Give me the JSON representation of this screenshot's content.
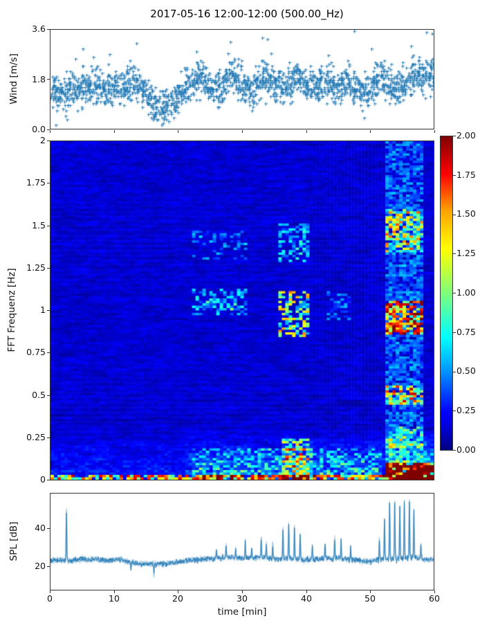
{
  "figure": {
    "title": "2017-05-16 12:00-12:00 (500.00_Hz)"
  },
  "colors": {
    "accent": "#1f77b4",
    "spine": "#333333",
    "background": "#ffffff"
  },
  "wind_plot": {
    "ylabel": "Wind [m/s]",
    "yticks": [
      "3.6",
      "1.8",
      "0.0"
    ]
  },
  "spec_plot": {
    "ylabel": "FFT Frequenz [Hz]",
    "yticks": [
      "2",
      "1.75",
      "1.5",
      "1.25",
      "1",
      "0.75",
      "0.5",
      "0.25",
      "0"
    ]
  },
  "colorbar": {
    "ticks": [
      "2.00",
      "1.75",
      "1.50",
      "1.25",
      "1.00",
      "0.75",
      "0.50",
      "0.25",
      "0.00"
    ]
  },
  "spl_plot": {
    "ylabel": "SPL [dB]",
    "yticks": [
      "40",
      "20"
    ],
    "xticks": [
      "0",
      "10",
      "20",
      "30",
      "40",
      "50",
      "60"
    ],
    "xlabel": "time [min]"
  },
  "chart_data": [
    {
      "type": "scatter",
      "name": "wind-speed",
      "ylabel": "Wind [m/s]",
      "xlim": [
        0,
        60
      ],
      "ylim": [
        0,
        3.6
      ],
      "yticks": [
        0.0,
        1.8,
        3.6
      ],
      "marker": "+",
      "color": "#1f77b4",
      "points_per_minute": 34,
      "spread": 0.3,
      "minute_means": [
        1.35,
        1.2,
        1.3,
        1.45,
        1.4,
        1.5,
        1.55,
        1.5,
        1.4,
        1.5,
        1.65,
        1.55,
        1.5,
        1.75,
        1.5,
        1.15,
        0.85,
        0.75,
        0.9,
        1.05,
        1.3,
        1.6,
        1.8,
        1.85,
        1.7,
        1.45,
        1.5,
        1.75,
        1.95,
        1.75,
        1.5,
        1.3,
        1.6,
        1.95,
        1.8,
        1.6,
        1.5,
        1.65,
        1.85,
        1.6,
        1.5,
        1.6,
        1.75,
        1.7,
        1.5,
        1.6,
        1.7,
        1.5,
        1.4,
        1.35,
        1.55,
        1.75,
        1.7,
        1.5,
        1.45,
        1.6,
        1.85,
        2.0,
        1.8,
        1.95
      ],
      "outliers": [
        [
          5.1,
          2.9
        ],
        [
          9.3,
          2.7
        ],
        [
          13.5,
          3.1
        ],
        [
          22.9,
          2.8
        ],
        [
          28.2,
          3.15
        ],
        [
          33.2,
          3.3
        ],
        [
          34.0,
          3.25
        ],
        [
          47.6,
          3.55
        ],
        [
          50.3,
          2.9
        ],
        [
          56.5,
          3.0
        ],
        [
          58.9,
          3.5
        ],
        [
          59.8,
          3.45
        ]
      ]
    },
    {
      "type": "heatmap",
      "name": "fft-spectrogram",
      "ylabel": "FFT Frequenz [Hz]",
      "xlim": [
        0,
        60
      ],
      "ylim": [
        0,
        2
      ],
      "colormap": "jet",
      "clim": [
        0.0,
        2.0
      ],
      "grid": {
        "time_bins": 111,
        "freq_bins": 140
      },
      "base": {
        "level": 0.04,
        "noise": 0.12,
        "persistence": 0.55
      },
      "low_freq_ramp": {
        "f_max": 0.3,
        "strength": 0.5
      },
      "time_boosts": [
        {
          "t": [
            0,
            21
          ],
          "k": 0.35
        },
        {
          "t": [
            21,
            36
          ],
          "k": 0.7
        },
        {
          "t": [
            36,
            41
          ],
          "k": 1.0
        },
        {
          "t": [
            41,
            52.5
          ],
          "k": 0.7
        },
        {
          "t": [
            52.5,
            60
          ],
          "k": 1.8
        }
      ],
      "events": [
        {
          "t": [
            22,
            31
          ],
          "f": [
            0.97,
            1.13
          ],
          "amp": 0.5,
          "p": 0.45
        },
        {
          "t": [
            22,
            31
          ],
          "f": [
            1.3,
            1.47
          ],
          "amp": 0.38,
          "p": 0.35
        },
        {
          "t": [
            24,
            30
          ],
          "f": [
            1.0,
            1.06
          ],
          "amp": 0.35,
          "p": 0.5
        },
        {
          "t": [
            35.5,
            40.5
          ],
          "f": [
            0.85,
            1.12
          ],
          "amp": 1.0,
          "p": 0.55
        },
        {
          "t": [
            35.5,
            40.5
          ],
          "f": [
            1.28,
            1.52
          ],
          "amp": 0.55,
          "p": 0.45
        },
        {
          "t": [
            43.5,
            47
          ],
          "f": [
            0.95,
            1.12
          ],
          "amp": 0.35,
          "p": 0.35
        },
        {
          "t": [
            52.5,
            58.5
          ],
          "f": [
            0,
            2
          ],
          "amp": 0.35,
          "p": 0.75
        },
        {
          "t": [
            52.5,
            58.5
          ],
          "f": [
            0.86,
            1.06
          ],
          "amp": 1.35,
          "p": 0.8
        },
        {
          "t": [
            52.5,
            58.5
          ],
          "f": [
            1.35,
            1.6
          ],
          "amp": 0.85,
          "p": 0.7
        },
        {
          "t": [
            52.5,
            58.5
          ],
          "f": [
            0.44,
            0.56
          ],
          "amp": 1.05,
          "p": 0.7
        },
        {
          "t": [
            52.5,
            58.5
          ],
          "f": [
            0.18,
            0.32
          ],
          "amp": 0.5,
          "p": 0.5
        },
        {
          "t": [
            52.5,
            60
          ],
          "f": [
            0,
            0.1
          ],
          "amp": 1.7,
          "p": 0.9
        },
        {
          "t": [
            36,
            40.5
          ],
          "f": [
            0,
            0.25
          ],
          "amp": 0.8,
          "p": 0.6
        },
        {
          "t": [
            22,
            52
          ],
          "f": [
            0,
            0.18
          ],
          "amp": 0.45,
          "p": 0.45
        },
        {
          "t": [
            0,
            60
          ],
          "f": [
            0,
            0.03
          ],
          "amp": 1.2,
          "p": 0.85
        }
      ]
    },
    {
      "type": "line",
      "name": "spl",
      "ylabel": "SPL [dB]",
      "xlabel": "time [min]",
      "xlim": [
        0,
        60
      ],
      "ylim": [
        8,
        58
      ],
      "yticks": [
        20,
        40
      ],
      "xticks": [
        0,
        10,
        20,
        30,
        40,
        50,
        60
      ],
      "color": "#1f77b4",
      "noise_amp": 0.9,
      "baseline_by_minute": [
        23,
        23.5,
        23.5,
        23,
        23.5,
        24,
        23.5,
        24,
        23.5,
        23,
        23.5,
        24,
        22.5,
        22,
        21.5,
        21.5,
        21.5,
        21.5,
        21.5,
        22,
        22.5,
        23,
        23.5,
        23.5,
        24,
        24,
        24.5,
        24.5,
        25,
        24.5,
        24.5,
        25,
        24.5,
        25,
        24.5,
        24,
        24,
        24.5,
        24,
        24,
        23.5,
        24,
        24,
        24.5,
        24,
        24.5,
        24,
        23.5,
        23.5,
        23,
        23,
        23.5,
        24,
        24,
        24.5,
        24,
        24.5,
        25,
        24,
        23.5,
        24
      ],
      "spikes": [
        [
          2.5,
          49
        ],
        [
          26.0,
          29
        ],
        [
          27.5,
          31
        ],
        [
          29.0,
          30
        ],
        [
          30.5,
          33
        ],
        [
          31.5,
          30
        ],
        [
          33.0,
          35
        ],
        [
          33.8,
          31
        ],
        [
          34.8,
          32
        ],
        [
          36.4,
          40
        ],
        [
          37.3,
          42
        ],
        [
          38.2,
          41
        ],
        [
          39.1,
          37
        ],
        [
          41.0,
          31
        ],
        [
          43.0,
          32
        ],
        [
          44.5,
          35
        ],
        [
          45.5,
          33
        ],
        [
          47.0,
          30
        ],
        [
          51.5,
          34
        ],
        [
          52.3,
          44
        ],
        [
          53.1,
          53
        ],
        [
          53.9,
          54
        ],
        [
          54.7,
          51
        ],
        [
          55.4,
          53
        ],
        [
          56.2,
          54
        ],
        [
          56.9,
          49
        ],
        [
          58.0,
          31
        ]
      ],
      "dips": [
        [
          16.2,
          15.5
        ],
        [
          12.6,
          18.5
        ]
      ]
    }
  ]
}
